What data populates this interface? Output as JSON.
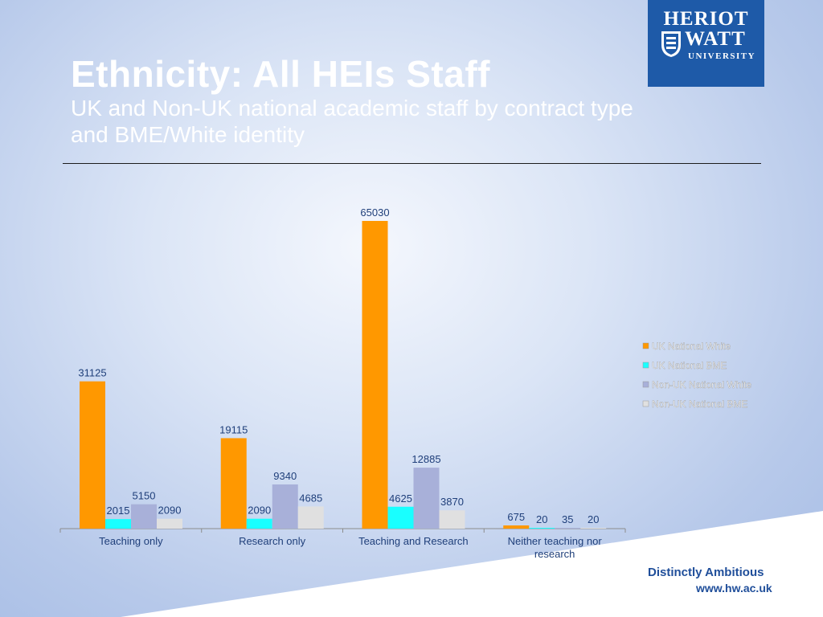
{
  "title": "Ethnicity: All HEIs Staff",
  "subtitle": "UK and Non-UK national academic staff by contract type and BME/White identity",
  "logo": {
    "line1": "HERIOT",
    "line2": "WATT",
    "line3": "UNIVERSITY"
  },
  "footer": {
    "tagline": "Distinctly Ambitious",
    "website": "www.hw.ac.uk"
  },
  "colors": {
    "accent": "#1e5aa8"
  },
  "chart_data": {
    "type": "bar",
    "categories": [
      "Teaching only",
      "Research only",
      "Teaching and Research",
      "Neither teaching nor research"
    ],
    "series": [
      {
        "name": "UK National White",
        "color": "#ff9800",
        "values": [
          31125,
          19115,
          65030,
          675
        ]
      },
      {
        "name": "UK National BME",
        "color": "#19ffff",
        "values": [
          2015,
          2090,
          4625,
          20
        ]
      },
      {
        "name": "Non-UK National White",
        "color": "#a8b0d9",
        "values": [
          5150,
          9340,
          12885,
          35
        ]
      },
      {
        "name": "Non-UK National BME",
        "color": "#e0e0e0",
        "values": [
          2090,
          4685,
          3870,
          20
        ]
      }
    ],
    "legend_position": "right",
    "grid": false
  }
}
